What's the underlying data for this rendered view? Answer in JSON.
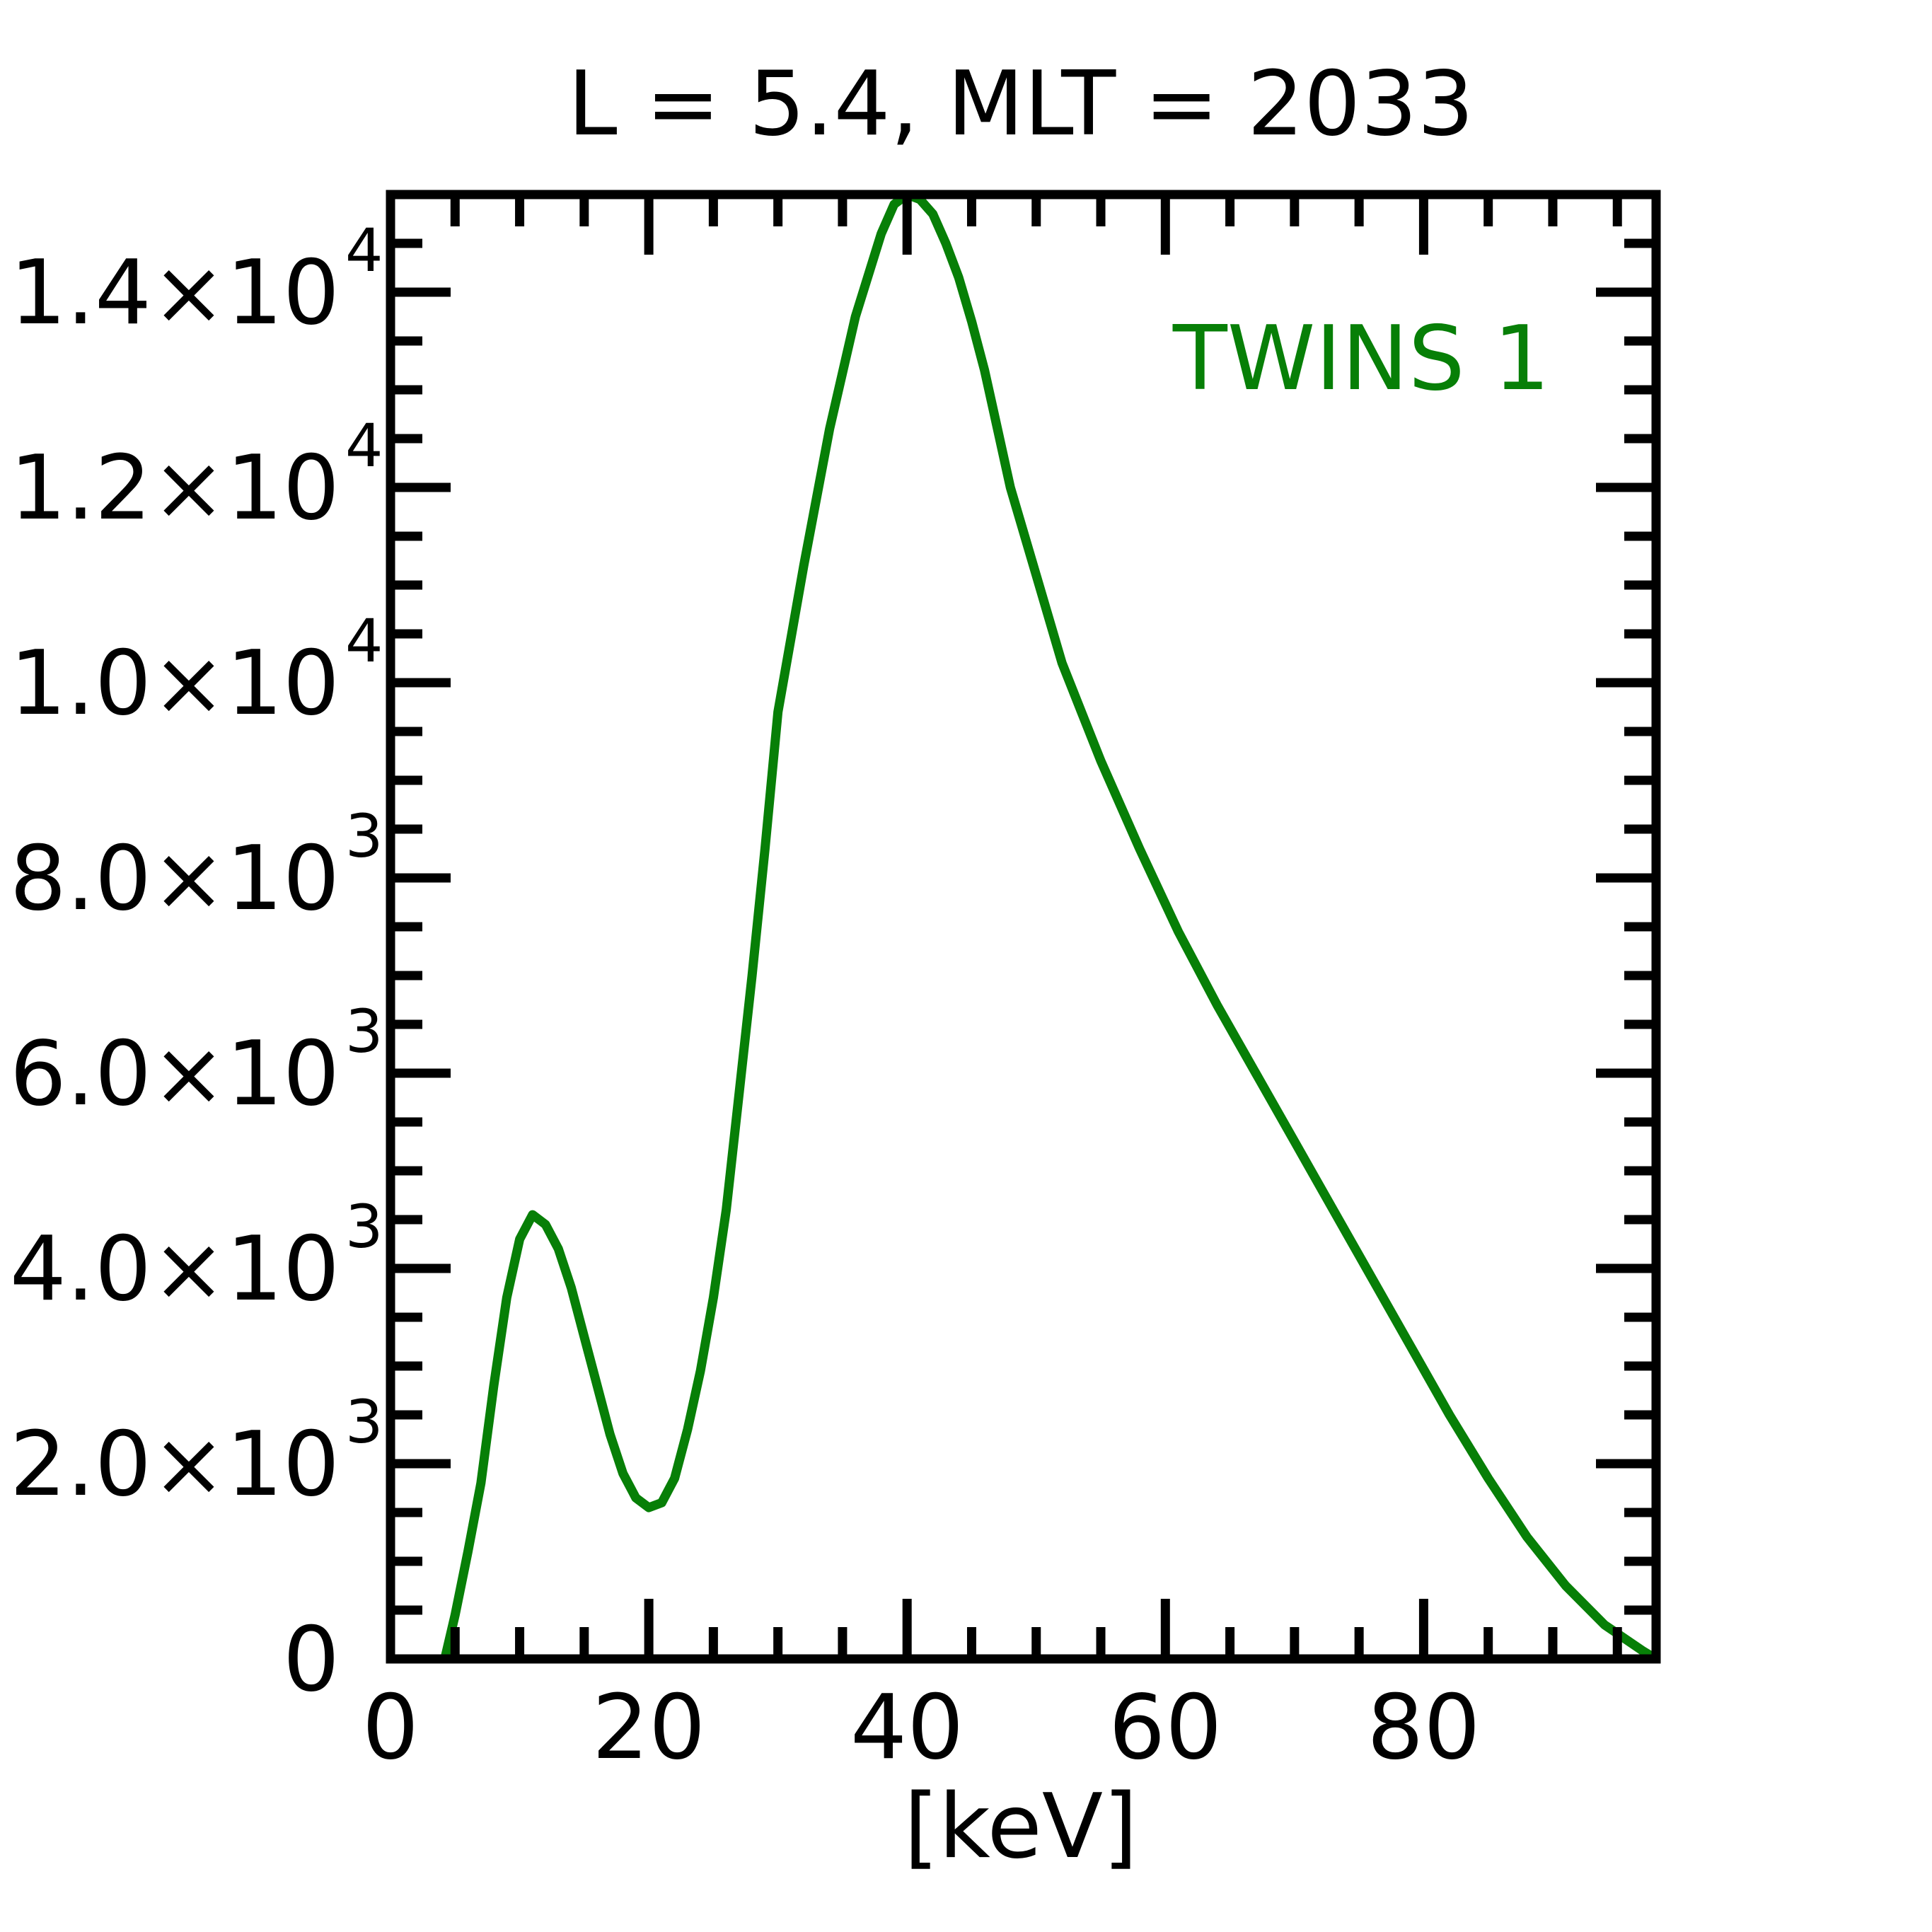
{
  "chart_data": {
    "type": "line",
    "title": "L =  5.4, MLT = 2033",
    "xlabel": "[keV]",
    "ylabel": "",
    "xlim": [
      0,
      98
    ],
    "ylim": [
      0,
      15000
    ],
    "x_ticks": [
      0,
      20,
      40,
      60,
      80
    ],
    "x_tick_labels": [
      "0",
      "20",
      "40",
      "60",
      "80"
    ],
    "y_ticks": [
      {
        "value": 0,
        "mantissa": "0",
        "exponent": ""
      },
      {
        "value": 2000,
        "mantissa": "2.0×10",
        "exponent": "3"
      },
      {
        "value": 4000,
        "mantissa": "4.0×10",
        "exponent": "3"
      },
      {
        "value": 6000,
        "mantissa": "6.0×10",
        "exponent": "3"
      },
      {
        "value": 8000,
        "mantissa": "8.0×10",
        "exponent": "3"
      },
      {
        "value": 10000,
        "mantissa": "1.0×10",
        "exponent": "4"
      },
      {
        "value": 12000,
        "mantissa": "1.2×10",
        "exponent": "4"
      },
      {
        "value": 14000,
        "mantissa": "1.4×10",
        "exponent": "4"
      }
    ],
    "x_minor_step": 5,
    "y_minor_step": 500,
    "grid": false,
    "legend_placement": "top-right",
    "series": [
      {
        "name": "TWINS 1",
        "color": "#077f07",
        "x": [
          4.2,
          5.0,
          6.0,
          7.0,
          8.0,
          9.0,
          10.0,
          11.0,
          12.0,
          13.0,
          14.0,
          15.0,
          16.0,
          17.0,
          18.0,
          19.0,
          20.0,
          21.0,
          22.0,
          23.0,
          24.0,
          25.0,
          26.0,
          27.0,
          28.0,
          29.0,
          30.0,
          32.0,
          34.0,
          36.0,
          38.0,
          39.0,
          40.0,
          41.0,
          42.0,
          43.0,
          44.0,
          45.0,
          46.0,
          47.0,
          48.0,
          50.0,
          52.0,
          55.0,
          58.0,
          61.0,
          64.0,
          67.0,
          70.0,
          73.0,
          76.0,
          79.0,
          82.0,
          85.0,
          88.0,
          91.0,
          94.0,
          97.0,
          98.0
        ],
        "y": [
          0,
          450,
          1100,
          1800,
          2800,
          3700,
          4300,
          4550,
          4450,
          4200,
          3800,
          3300,
          2800,
          2300,
          1900,
          1650,
          1550,
          1600,
          1850,
          2350,
          2950,
          3700,
          4600,
          5800,
          7000,
          8300,
          9700,
          11200,
          12600,
          13750,
          14600,
          14900,
          15000,
          14950,
          14800,
          14500,
          14150,
          13700,
          13200,
          12600,
          12000,
          11100,
          10200,
          9200,
          8300,
          7450,
          6700,
          6000,
          5300,
          4600,
          3900,
          3200,
          2500,
          1850,
          1250,
          750,
          350,
          80,
          0
        ]
      }
    ]
  }
}
